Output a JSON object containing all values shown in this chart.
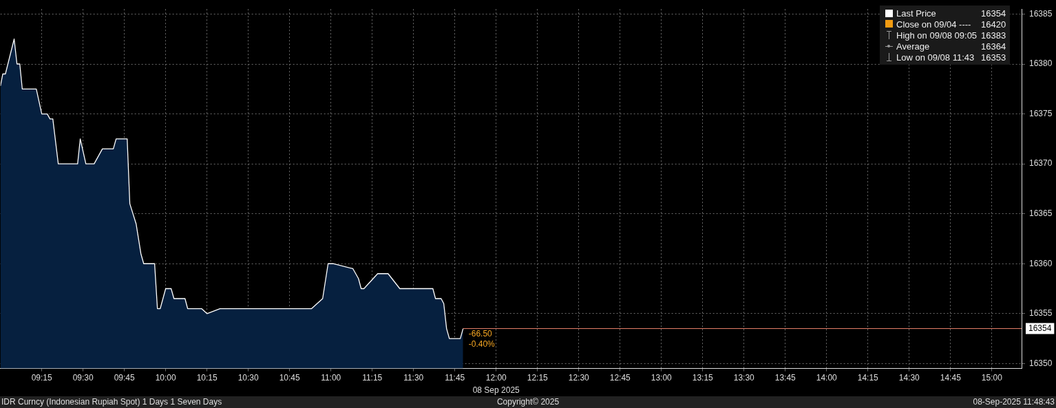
{
  "chart_data": {
    "type": "area",
    "x": [
      9.0,
      9.014,
      9.03,
      9.083,
      9.1,
      9.117,
      9.132,
      9.217,
      9.25,
      9.283,
      9.3,
      9.317,
      9.35,
      9.467,
      9.483,
      9.517,
      9.567,
      9.617,
      9.683,
      9.7,
      9.767,
      9.783,
      9.821,
      9.85,
      9.867,
      9.933,
      9.95,
      9.967,
      10.0,
      10.033,
      10.05,
      10.117,
      10.133,
      10.217,
      10.25,
      10.329,
      10.883,
      10.95,
      10.983,
      11.013,
      11.133,
      11.167,
      11.183,
      11.2,
      11.283,
      11.346,
      11.417,
      11.617,
      11.633,
      11.667,
      11.683,
      11.7,
      11.717,
      11.783,
      11.8
    ],
    "series": [
      {
        "name": "Last Price",
        "color": "#ffffff",
        "values": [
          16377.8,
          16379,
          16379,
          16382.5,
          16380,
          16380,
          16377.5,
          16377.5,
          16375,
          16375,
          16374.5,
          16374.5,
          16370,
          16370,
          16372.5,
          16370,
          16370,
          16371.5,
          16371.5,
          16372.5,
          16372.5,
          16366,
          16364,
          16361,
          16360,
          16360,
          16355.5,
          16355.5,
          16357.5,
          16357.5,
          16356.5,
          16356.5,
          16355.5,
          16355.5,
          16355,
          16355.5,
          16355.5,
          16356.5,
          16360,
          16360,
          16359.5,
          16358.5,
          16357.5,
          16357.5,
          16359,
          16359,
          16357.5,
          16357.5,
          16356.5,
          16356.5,
          16356,
          16353.5,
          16352.5,
          16352.5,
          16353.5
        ]
      }
    ],
    "xlim": [
      9,
      15.18
    ],
    "xticks": [
      {
        "value": 9.25,
        "label": "09:15"
      },
      {
        "value": 9.5,
        "label": "09:30"
      },
      {
        "value": 9.75,
        "label": "09:45"
      },
      {
        "value": 10,
        "label": "10:00"
      },
      {
        "value": 10.25,
        "label": "10:15"
      },
      {
        "value": 10.5,
        "label": "10:30"
      },
      {
        "value": 10.75,
        "label": "10:45"
      },
      {
        "value": 11,
        "label": "11:00"
      },
      {
        "value": 11.25,
        "label": "11:15"
      },
      {
        "value": 11.5,
        "label": "11:30"
      },
      {
        "value": 11.75,
        "label": "11:45"
      },
      {
        "value": 12,
        "label": "12:00"
      },
      {
        "value": 12.25,
        "label": "12:15"
      },
      {
        "value": 12.5,
        "label": "12:30"
      },
      {
        "value": 12.75,
        "label": "12:45"
      },
      {
        "value": 13,
        "label": "13:00"
      },
      {
        "value": 13.25,
        "label": "13:15"
      },
      {
        "value": 13.5,
        "label": "13:30"
      },
      {
        "value": 13.75,
        "label": "13:45"
      },
      {
        "value": 14,
        "label": "14:00"
      },
      {
        "value": 14.25,
        "label": "14:15"
      },
      {
        "value": 14.5,
        "label": "14:30"
      },
      {
        "value": 14.75,
        "label": "14:45"
      },
      {
        "value": 15,
        "label": "15:00"
      }
    ],
    "ylim": [
      16349.5,
      16385.5
    ],
    "yticks": [
      16350,
      16355,
      16360,
      16365,
      16370,
      16375,
      16380,
      16385
    ],
    "grid": true,
    "legend": "top right",
    "ref_lines": [
      {
        "axis": "y",
        "value": 16353.5,
        "label": "16354",
        "color": "#e8826a"
      }
    ],
    "annotations": [
      "-66.50",
      "-0.40%",
      "16354",
      "Close on 09/04 ---- 16420",
      "High on 09/08 09:05 16383",
      "Average 16364",
      "Low on 09/08 11:43 16353",
      "08 Sep 2025",
      "IDR Curncy (Indonesian Rupiah Spot) 1 Days 1 Seven Days",
      "Copyright© 2025",
      "08-Sep-2025 11:48:43"
    ]
  }
}
